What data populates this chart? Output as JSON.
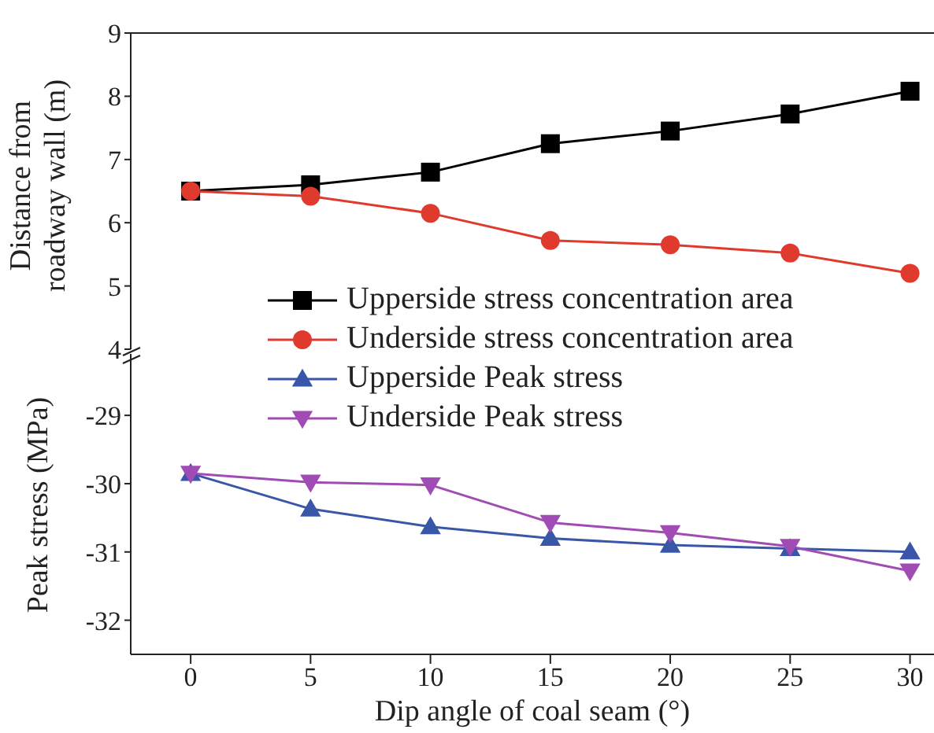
{
  "chart_data": [
    {
      "type": "line",
      "ylabel": "Distance from roadway wall (m)",
      "x": [
        0,
        5,
        10,
        15,
        20,
        25,
        30
      ],
      "xlim": [
        -2.5,
        31
      ],
      "ylim": [
        4,
        9
      ],
      "yticks": [
        4,
        5,
        6,
        7,
        8,
        9
      ],
      "tick_labels": "y",
      "grid": false,
      "legend": "bottom",
      "series": [
        {
          "name": "Upperside stress concentration area",
          "color": "#000000",
          "marker": "square",
          "values": [
            6.5,
            6.6,
            6.8,
            7.25,
            7.45,
            7.72,
            8.08
          ]
        },
        {
          "name": "Underside stress concentration area",
          "color": "#e03a2f",
          "marker": "circle",
          "values": [
            6.5,
            6.42,
            6.15,
            5.72,
            5.65,
            5.52,
            5.2
          ]
        }
      ]
    },
    {
      "type": "line",
      "xlabel": "Dip angle of coal seam (°)",
      "ylabel": "Peak stress (MPa)",
      "x": [
        0,
        5,
        10,
        15,
        20,
        25,
        30
      ],
      "xlim": [
        -2.5,
        31
      ],
      "xticks": [
        0,
        5,
        10,
        15,
        20,
        25,
        30
      ],
      "ylim": [
        -32.5,
        -28.1
      ],
      "yticks": [
        -32,
        -31,
        -30,
        -29
      ],
      "grid": false,
      "legend": "top",
      "series": [
        {
          "name": "Upperside Peak stress",
          "color": "#3a56a8",
          "marker": "triangle",
          "values": [
            -29.85,
            -30.37,
            -30.63,
            -30.8,
            -30.9,
            -30.95,
            -31.0
          ]
        },
        {
          "name": "Underside Peak stress",
          "color": "#a04cb4",
          "marker": "triangle-down",
          "values": [
            -29.85,
            -29.98,
            -30.02,
            -30.57,
            -30.72,
            -30.92,
            -31.28
          ]
        }
      ]
    }
  ]
}
